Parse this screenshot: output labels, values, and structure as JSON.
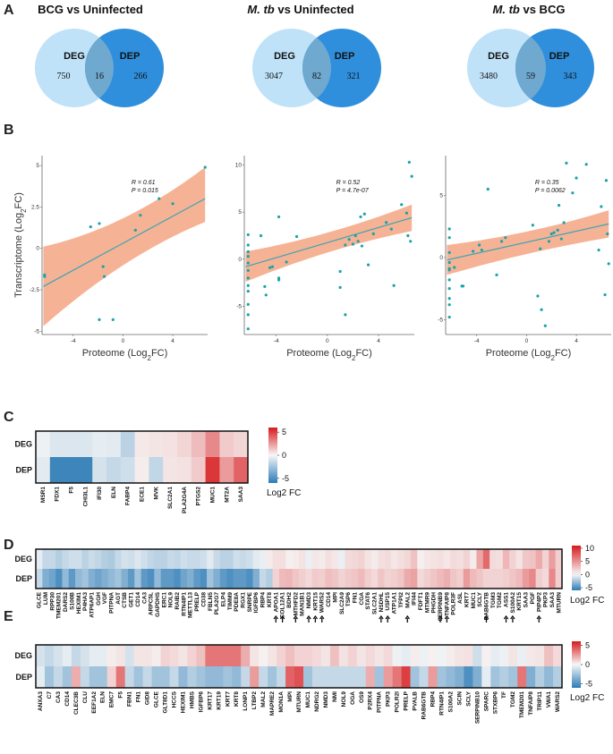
{
  "figure": {
    "panels": {
      "A": "A",
      "B": "B",
      "C": "C",
      "D": "D",
      "E": "E"
    }
  },
  "venn": [
    {
      "title": "BCG vs Uninfected",
      "left_label": "DEG",
      "right_label": "DEP",
      "left_only": "750",
      "overlap": "16",
      "right_only": "266"
    },
    {
      "title_italic": "M. tb",
      "title_rest": " vs Uninfected",
      "left_label": "DEG",
      "right_label": "DEP",
      "left_only": "3047",
      "overlap": "82",
      "right_only": "321"
    },
    {
      "title_italic": "M. tb",
      "title_rest": " vs BCG",
      "left_label": "DEG",
      "right_label": "DEP",
      "left_only": "3480",
      "overlap": "59",
      "right_only": "343"
    }
  ],
  "colors": {
    "deg_circle": "#bfe2f8",
    "dep_circle": "#2f8fdc",
    "overlap": "#6fa9cf",
    "ribbon": "#f4a582",
    "fit_line": "#3aa5b4",
    "point": "#1aa3a8",
    "heat_pos": "#d7191c",
    "heat_neg": "#2c7bb6"
  },
  "chart_data": [
    {
      "type": "scatter",
      "title": "BCG vs Uninfected",
      "xlabel": "Proteome (Log2FC)",
      "ylabel": "Transcriptome (Log2FC)",
      "xlim": [
        -6.5,
        6.8
      ],
      "ylim": [
        -5.2,
        5.6
      ],
      "xticks": [
        -4,
        0,
        4
      ],
      "yticks": [
        -5,
        -2.5,
        0,
        2.5,
        5
      ],
      "xtick_labels": [
        "-4",
        "0",
        "4"
      ],
      "ytick_labels": [
        "-5",
        "-2.5",
        "0",
        "2.5",
        "5"
      ],
      "annotation": [
        "R = 0.61",
        "P = 0.015"
      ],
      "fit": {
        "x0": -6.4,
        "y0": -2.3,
        "x1": 6.6,
        "y1": 3.0
      },
      "band": {
        "lower_start": -4.7,
        "upper_start": 0.1,
        "lower_mid": -0.4,
        "upper_mid": 1.2,
        "lower_end": 1.6,
        "upper_end": 4.9
      },
      "points": [
        {
          "x": -6.3,
          "y": -1.7
        },
        {
          "x": -6.3,
          "y": -1.6
        },
        {
          "x": -2.6,
          "y": 1.3
        },
        {
          "x": -1.9,
          "y": 1.5
        },
        {
          "x": -1.5,
          "y": -1.7
        },
        {
          "x": -1.6,
          "y": -1.1
        },
        {
          "x": -1.9,
          "y": -4.3
        },
        {
          "x": -0.8,
          "y": -4.3
        },
        {
          "x": 1.0,
          "y": 1.1
        },
        {
          "x": 1.4,
          "y": 2.0
        },
        {
          "x": 2.9,
          "y": 3.0
        },
        {
          "x": 4.0,
          "y": 2.7
        },
        {
          "x": 6.6,
          "y": 4.9
        }
      ]
    },
    {
      "type": "scatter",
      "title": "M. tb vs Uninfected",
      "xlabel": "Proteome (Log2FC)",
      "ylabel": "",
      "xlim": [
        -6.5,
        6.8
      ],
      "ylim": [
        -8,
        11
      ],
      "xticks": [
        -4,
        0,
        4
      ],
      "yticks": [
        -5,
        0,
        5,
        10
      ],
      "xtick_labels": [
        "-4",
        "0",
        "4"
      ],
      "ytick_labels": [
        "-5",
        "0",
        "5",
        "10"
      ],
      "annotation": [
        "R = 0.52",
        "P = 4.7e-07"
      ],
      "fit": {
        "x0": -6.4,
        "y0": -0.8,
        "x1": 6.6,
        "y1": 4.4
      },
      "band": {
        "lower_start": -2.4,
        "upper_start": 0.8,
        "lower_mid": 1.2,
        "upper_mid": 2.4,
        "lower_end": 3.0,
        "upper_end": 5.8
      },
      "points": [
        {
          "x": -6.2,
          "y": 2.6
        },
        {
          "x": -6.2,
          "y": 1.5
        },
        {
          "x": -6.2,
          "y": 0.8
        },
        {
          "x": -6.2,
          "y": -0.4
        },
        {
          "x": -6.2,
          "y": -1.2
        },
        {
          "x": -6.2,
          "y": -2.0
        },
        {
          "x": -6.2,
          "y": -2.8
        },
        {
          "x": -6.2,
          "y": -3.4
        },
        {
          "x": -6.2,
          "y": -4.8
        },
        {
          "x": -6.2,
          "y": -5.9
        },
        {
          "x": -6.2,
          "y": -7.4
        },
        {
          "x": -6.2,
          "y": 0.3
        },
        {
          "x": -5.2,
          "y": 2.5
        },
        {
          "x": -4.9,
          "y": -2.9
        },
        {
          "x": -4.8,
          "y": -3.8
        },
        {
          "x": -4.5,
          "y": -0.9
        },
        {
          "x": -4.3,
          "y": -0.8
        },
        {
          "x": -3.8,
          "y": -2.0
        },
        {
          "x": -3.8,
          "y": 4.5
        },
        {
          "x": -3.8,
          "y": -2.2
        },
        {
          "x": -3.2,
          "y": -0.3
        },
        {
          "x": -2.4,
          "y": 2.4
        },
        {
          "x": 1.0,
          "y": -1.3
        },
        {
          "x": 1.0,
          "y": -3.0
        },
        {
          "x": 1.4,
          "y": -5.9
        },
        {
          "x": 1.4,
          "y": 1.5
        },
        {
          "x": 1.7,
          "y": 2.1
        },
        {
          "x": 2.0,
          "y": 1.6
        },
        {
          "x": 2.2,
          "y": 2.5
        },
        {
          "x": 2.4,
          "y": 1.9
        },
        {
          "x": 2.6,
          "y": 4.5
        },
        {
          "x": 2.7,
          "y": 1.4
        },
        {
          "x": 2.9,
          "y": 4.8
        },
        {
          "x": 3.2,
          "y": -0.6
        },
        {
          "x": 3.6,
          "y": 2.7
        },
        {
          "x": 4.6,
          "y": 3.9
        },
        {
          "x": 5.0,
          "y": 3.2
        },
        {
          "x": 5.2,
          "y": -2.8
        },
        {
          "x": 5.8,
          "y": 5.8
        },
        {
          "x": 6.2,
          "y": 4.9
        },
        {
          "x": 6.3,
          "y": 2.5
        },
        {
          "x": 6.4,
          "y": 10.3
        },
        {
          "x": 6.5,
          "y": 1.9
        },
        {
          "x": 6.6,
          "y": 8.8
        }
      ]
    },
    {
      "type": "scatter",
      "title": "M. tb vs BCG",
      "xlabel": "Proteome (Log2FC)",
      "ylabel": "",
      "xlim": [
        -6.5,
        6.8
      ],
      "ylim": [
        -6.2,
        8.2
      ],
      "xticks": [
        -4,
        0,
        4
      ],
      "yticks": [
        -5,
        0,
        5
      ],
      "xtick_labels": [
        "-4",
        "0",
        "4"
      ],
      "ytick_labels": [
        "-5",
        "0",
        "5"
      ],
      "annotation": [
        "R = 0.35",
        "P = 0.0062"
      ],
      "fit": {
        "x0": -6.4,
        "y0": -0.2,
        "x1": 6.6,
        "y1": 2.7
      },
      "band": {
        "lower_start": -1.4,
        "upper_start": 1.0,
        "lower_mid": 0.5,
        "upper_mid": 1.8,
        "lower_end": 1.6,
        "upper_end": 3.8
      },
      "points": [
        {
          "x": -6.2,
          "y": 2.3
        },
        {
          "x": -6.2,
          "y": 1.6
        },
        {
          "x": -6.2,
          "y": 0.4
        },
        {
          "x": -6.2,
          "y": -0.4
        },
        {
          "x": -6.2,
          "y": -1.0
        },
        {
          "x": -6.2,
          "y": -1.8
        },
        {
          "x": -6.2,
          "y": -2.5
        },
        {
          "x": -6.2,
          "y": -3.3
        },
        {
          "x": -6.2,
          "y": -3.8
        },
        {
          "x": -6.2,
          "y": -4.8
        },
        {
          "x": -6.2,
          "y": -0.9
        },
        {
          "x": -5.8,
          "y": -0.8
        },
        {
          "x": -5.2,
          "y": -2.3
        },
        {
          "x": -5.1,
          "y": -2.3
        },
        {
          "x": -4.3,
          "y": 0.5
        },
        {
          "x": -3.8,
          "y": 1.0
        },
        {
          "x": -3.6,
          "y": 0.6
        },
        {
          "x": -3.1,
          "y": 5.5
        },
        {
          "x": -2.4,
          "y": -1.4
        },
        {
          "x": -2.0,
          "y": 1.3
        },
        {
          "x": -1.7,
          "y": 1.6
        },
        {
          "x": 0.5,
          "y": 2.6
        },
        {
          "x": 0.9,
          "y": -3.1
        },
        {
          "x": 1.1,
          "y": 0.7
        },
        {
          "x": 1.2,
          "y": -4.2
        },
        {
          "x": 1.5,
          "y": -5.5
        },
        {
          "x": 1.8,
          "y": 1.3
        },
        {
          "x": 2.0,
          "y": 1.9
        },
        {
          "x": 2.2,
          "y": 2.0
        },
        {
          "x": 2.5,
          "y": 2.2
        },
        {
          "x": 2.6,
          "y": 4.2
        },
        {
          "x": 2.8,
          "y": 1.5
        },
        {
          "x": 3.0,
          "y": 2.8
        },
        {
          "x": 3.2,
          "y": 7.6
        },
        {
          "x": 3.7,
          "y": 5.2
        },
        {
          "x": 4.0,
          "y": 6.4
        },
        {
          "x": 4.8,
          "y": 7.5
        },
        {
          "x": 5.8,
          "y": 0.6
        },
        {
          "x": 6.0,
          "y": 4.1
        },
        {
          "x": 6.3,
          "y": -3.0
        },
        {
          "x": 6.4,
          "y": 6.2
        },
        {
          "x": 6.5,
          "y": 1.9
        },
        {
          "x": 6.6,
          "y": -0.5
        }
      ]
    },
    {
      "type": "heatmap",
      "panel": "C",
      "rows": [
        "DEG",
        "DEP"
      ],
      "genes": [
        "MSR1",
        "FDX1",
        "F5",
        "CHI3L1",
        "IFI30",
        "ELN",
        "FABP4",
        "ECE1",
        "MVK",
        "SLC2A1",
        "PLA2G4A",
        "PTGS2",
        "MUC1",
        "MT2A",
        "SAA3"
      ],
      "values": [
        [
          -0.3,
          -0.8,
          -0.8,
          -0.8,
          -0.5,
          -0.6,
          -1.8,
          0.4,
          0.5,
          0.6,
          0.9,
          1.6,
          3.0,
          1.2,
          0.9
        ],
        [
          -0.6,
          -5.5,
          -5.5,
          -5.5,
          -1.0,
          -1.5,
          -1.2,
          0.3,
          -1.6,
          0.5,
          0.6,
          1.2,
          5.2,
          2.5,
          4.0
        ]
      ],
      "colorbar": {
        "ticks": [
          "5",
          "0",
          "-5"
        ],
        "label": "Log2 FC"
      }
    },
    {
      "type": "heatmap",
      "panel": "D",
      "rows": [
        "DEG",
        "DEP"
      ],
      "genes": [
        "GLCE",
        "LUM",
        "RPP30",
        "TMEM201",
        "DARS2",
        "S100B",
        "HEXIM1",
        "P4HA3",
        "ATP6AP1",
        "GGH",
        "VGF",
        "PITPNA",
        "AGT",
        "CTSB",
        "GET1",
        "CD14",
        "CA3",
        "ARPC5L",
        "GAPDHS",
        "ERC1",
        "NOL9",
        "RAIB2",
        "RTN4IP1",
        "METTL13",
        "PRELP",
        "CD38",
        "FBLN5",
        "PLA2G7",
        "ELP4",
        "TIMM9",
        "PDE8A",
        "RGX1",
        "SNRPE",
        "IGFBP6",
        "RBP4",
        "KRT8",
        "APOA1",
        "COL12A1",
        "BDH2",
        "MTHFD2",
        "MAN1B1",
        "NMD3",
        "KRT15",
        "WARS2",
        "CD14",
        "MPI",
        "SLC2A9",
        "TSP6",
        "FN1",
        "CGA",
        "STAT6",
        "SLC2A1",
        "NSDHL",
        "USP15",
        "ATP1A1",
        "TFPI2",
        "MAL2",
        "IFI44",
        "FDFT1",
        "MTMR9",
        "PHGDH",
        "SERPINB9",
        "TNFAIP8",
        "POLR3F",
        "ASL",
        "KRT7",
        "MUC1",
        "SCLY",
        "RAB6GTB",
        "TGM3",
        "TGM2",
        "ASS1",
        "S100A2",
        "KRT15",
        "SAA3",
        "PGF",
        "PIP4P2",
        "PKP3",
        "SAA3",
        "MTURN"
      ],
      "values": [
        [
          -0.5,
          -1.5,
          -1.5,
          -2.0,
          -1.5,
          -1.2,
          -1.2,
          -1.8,
          -1.3,
          -1.6,
          -2.0,
          -2.2,
          -1.5,
          -1.0,
          -1.2,
          -0.8,
          -1.2,
          -1.6,
          -1.8,
          -1.8,
          -1.4,
          -1.6,
          -1.2,
          -1.4,
          -1.4,
          -1.2,
          -0.6,
          -1.4,
          -1.8,
          -1.8,
          -1.2,
          -1.4,
          -1.2,
          -0.6,
          -0.4,
          0.6,
          1.2,
          1.2,
          0.4,
          0.6,
          1.0,
          -0.4,
          0.8,
          0.6,
          1.2,
          0.8,
          -0.4,
          1.4,
          1.6,
          1.8,
          1.0,
          0.6,
          1.2,
          1.4,
          0.8,
          1.2,
          1.6,
          2.6,
          0.4,
          0.8,
          1.0,
          1.2,
          0.8,
          1.4,
          1.2,
          1.8,
          0.6,
          4.0,
          7.0,
          1.4,
          1.2,
          3.2,
          1.8,
          1.0,
          2.4,
          2.6,
          3.8,
          1.8,
          4.4,
          2.0
        ],
        [
          -1.5,
          -3.5,
          -4.0,
          -5.0,
          -3.0,
          -4.5,
          -3.0,
          -2.5,
          -3.5,
          -4.0,
          -3.5,
          -3.0,
          -2.5,
          -3.5,
          -4.5,
          -2.5,
          -4.5,
          -5.0,
          -3.0,
          -4.5,
          -4.5,
          -5.0,
          -4.0,
          -3.5,
          -4.5,
          -5.0,
          -2.5,
          -3.5,
          -4.5,
          -5.0,
          -4.5,
          -4.5,
          -5.0,
          -3.5,
          -1.5,
          -2.0,
          1.8,
          3.0,
          3.2,
          2.5,
          2.0,
          1.5,
          2.2,
          2.0,
          2.8,
          2.5,
          1.8,
          2.2,
          2.5,
          3.0,
          2.0,
          1.5,
          2.5,
          1.8,
          2.0,
          2.5,
          3.8,
          4.2,
          1.5,
          2.0,
          2.5,
          3.0,
          3.5,
          2.5,
          2.0,
          4.5,
          3.0,
          2.5,
          1.8,
          1.8,
          1.8,
          2.0,
          2.5,
          3.0,
          4.5,
          5.5,
          2.0,
          1.5,
          5.5,
          2.0
        ]
      ],
      "arrow_genes": [
        "APOA1",
        "COL12A1",
        "MTHFD2",
        "NMD3",
        "WARS2",
        "NSDHL",
        "USP15",
        "MAL2",
        "SERPINB9",
        "TNFAIP8",
        "RAB6GTB",
        "ASS1",
        "S100A2",
        "KRT15",
        "PIP4P2"
      ],
      "colorbar": {
        "ticks": [
          "10",
          "5",
          "0",
          "-5"
        ],
        "label": "Log2 FC"
      }
    },
    {
      "type": "heatmap",
      "panel": "E",
      "rows": [
        "DEG",
        "DEP"
      ],
      "genes": [
        "ANXA3",
        "C7",
        "CA3",
        "CD14",
        "CLEC3B",
        "CLU",
        "EEF1A2",
        "ELN",
        "EMC7",
        "F5",
        "FBN1",
        "FN1",
        "GID8",
        "GLCE",
        "GLT8D1",
        "HCCS",
        "HEXIM1",
        "HMBS",
        "IGFBP6",
        "KRT17",
        "KRT19",
        "KRT7",
        "KRT8",
        "LONP1",
        "LTBP2",
        "MAL2",
        "MAPRE2",
        "MON1A",
        "MPI",
        "MTURN",
        "MUC1",
        "NDRG2",
        "NMD3",
        "NMI",
        "NOL9",
        "OGA",
        "OS9",
        "P2RX4",
        "PITPNA",
        "PKP3",
        "POLR2I",
        "PRELP",
        "PVALB",
        "RAB6GTB",
        "RBP4",
        "RTN4IP1",
        "S100A2",
        "SCIN",
        "SCLY",
        "SERPINB10",
        "SPARC",
        "STXBP6",
        "TF",
        "TGM2",
        "TMEM201",
        "TNFAIP8",
        "TRIP11",
        "VWA1",
        "WARS2"
      ],
      "values": [
        [
          -1.0,
          -1.5,
          -1.0,
          -0.5,
          -1.5,
          -1.0,
          -0.5,
          -0.5,
          0.3,
          0.5,
          -1.0,
          0.5,
          0.5,
          0.3,
          1.0,
          0.8,
          0.5,
          1.0,
          1.5,
          3.5,
          3.5,
          3.5,
          3.5,
          2.0,
          0.5,
          0.2,
          0.5,
          1.0,
          1.5,
          1.0,
          1.0,
          0.8,
          0.5,
          1.5,
          0.6,
          1.0,
          0.5,
          0.8,
          0.5,
          0.8,
          -0.3,
          -0.5,
          0.3,
          -0.3,
          0.2,
          -0.2,
          0.3,
          0.5,
          0.6,
          -1.2,
          0.2,
          -0.5,
          -0.3,
          0.5,
          -0.4,
          0.4,
          0.5,
          1.5,
          0.8
        ],
        [
          -0.5,
          -2.5,
          -1.5,
          -2.5,
          2.0,
          -1.5,
          -2.5,
          -2.5,
          1.0,
          3.5,
          -1.5,
          -2.5,
          -1.5,
          -2.5,
          -2.5,
          -1.5,
          -3.0,
          -2.0,
          -2.5,
          -3.0,
          -3.0,
          -2.5,
          -3.0,
          -1.5,
          2.5,
          -1.5,
          -2.5,
          -1.5,
          4.0,
          4.5,
          -2.5,
          -1.5,
          -1.5,
          -1.5,
          -1.5,
          -1.5,
          -1.5,
          2.0,
          -2.5,
          2.5,
          3.5,
          5.0,
          -2.5,
          -1.5,
          2.5,
          -2.5,
          -3.0,
          -3.5,
          -5.0,
          -3.5,
          -0.5,
          -2.5,
          -2.0,
          -2.5,
          3.5,
          -3.5,
          -2.0,
          -3.0,
          -2.0
        ]
      ],
      "colorbar": {
        "ticks": [
          "5",
          "0",
          "-5"
        ],
        "label": "Log2 FC"
      }
    }
  ]
}
